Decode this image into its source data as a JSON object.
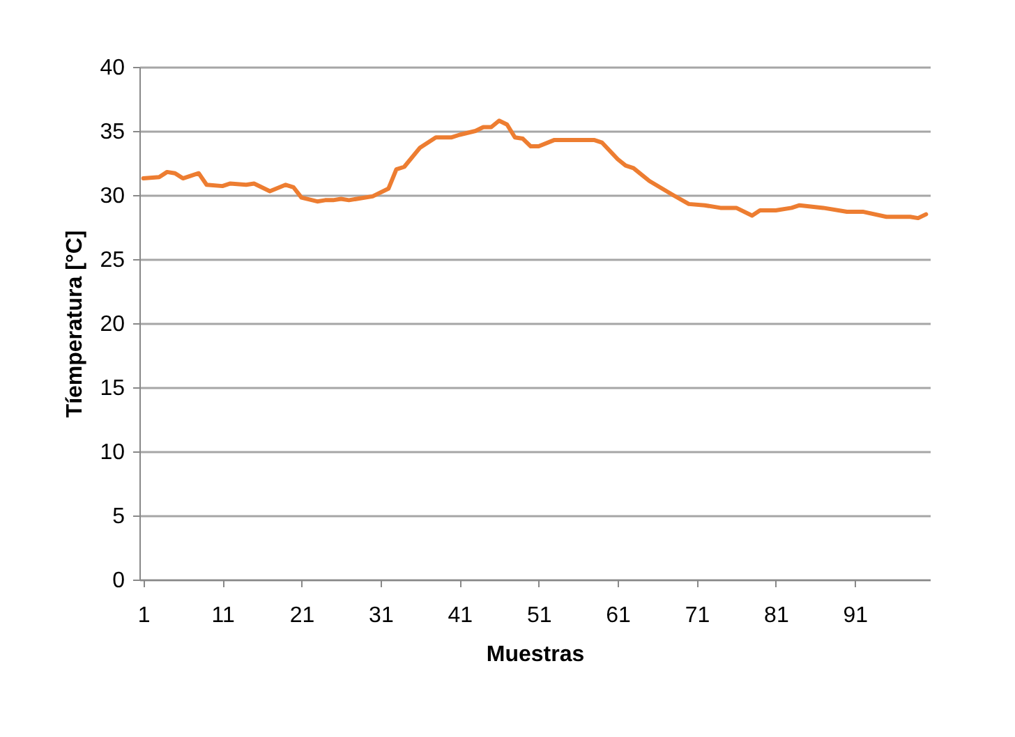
{
  "chart_data": {
    "type": "line",
    "xlabel": "Muestras",
    "ylabel": "Tíemperatura [°C]",
    "x": [
      1,
      3,
      4,
      5,
      6,
      8,
      9,
      11,
      12,
      14,
      15,
      17,
      19,
      20,
      21,
      23,
      24,
      25,
      26,
      27,
      30,
      32,
      33,
      34,
      36,
      38,
      40,
      41,
      43,
      44,
      45,
      46,
      47,
      48,
      49,
      50,
      51,
      53,
      58,
      59,
      61,
      62,
      63,
      65,
      68,
      70,
      72,
      74,
      76,
      78,
      79,
      81,
      83,
      84,
      87,
      90,
      92,
      95,
      98,
      99,
      100
    ],
    "series": [
      {
        "color": "#ed7d31",
        "values": [
          31.3,
          31.4,
          31.8,
          31.7,
          31.3,
          31.7,
          30.8,
          30.7,
          30.9,
          30.8,
          30.9,
          30.3,
          30.8,
          30.6,
          29.8,
          29.5,
          29.6,
          29.6,
          29.7,
          29.6,
          29.9,
          30.5,
          32.0,
          32.2,
          33.7,
          34.5,
          34.5,
          34.7,
          35.0,
          35.3,
          35.3,
          35.8,
          35.5,
          34.5,
          34.4,
          33.8,
          33.8,
          34.3,
          34.3,
          34.1,
          32.8,
          32.3,
          32.1,
          31.1,
          30.0,
          29.3,
          29.2,
          29.0,
          29.0,
          28.4,
          28.8,
          28.8,
          29.0,
          29.2,
          29.0,
          28.7,
          28.7,
          28.3,
          28.3,
          28.2,
          28.5
        ]
      }
    ],
    "xlim": [
      0.5,
      100.5
    ],
    "xticks": [
      1,
      11,
      21,
      31,
      41,
      51,
      61,
      71,
      81,
      91
    ],
    "ylim": [
      0,
      40
    ],
    "yticks": [
      0,
      5,
      10,
      15,
      20,
      25,
      30,
      35,
      40
    ],
    "grid": "y",
    "legend": false,
    "marker": "none",
    "line_style": "solid"
  }
}
